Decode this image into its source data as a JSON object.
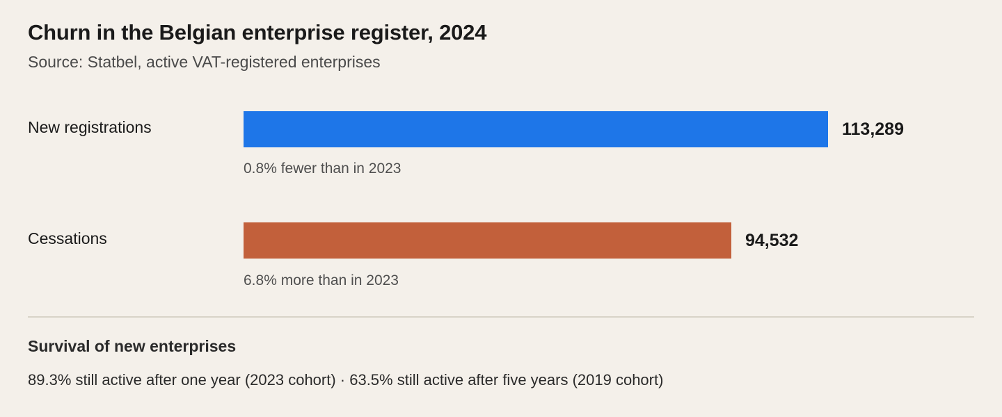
{
  "header": {
    "title": "Churn in the Belgian enterprise register, 2024",
    "subtitle": "Source: Statbel, active VAT-registered enterprises"
  },
  "chart_data": {
    "type": "bar",
    "orientation": "horizontal",
    "categories": [
      "New registrations",
      "Cessations"
    ],
    "values": [
      113289,
      94532
    ],
    "value_labels": [
      "113,289",
      "94,532"
    ],
    "notes": [
      "0.8% fewer than in 2023",
      "6.8% more than in 2023"
    ],
    "colors": [
      "#1e76e8",
      "#c2603b"
    ],
    "title": "Churn in the Belgian enterprise register, 2024",
    "xlabel": "",
    "ylabel": "",
    "grid": false,
    "legend": "none"
  },
  "survival": {
    "heading": "Survival of new enterprises",
    "text": "89.3% still active after one year (2023 cohort) · 63.5% still active after five years (2019 cohort)"
  }
}
